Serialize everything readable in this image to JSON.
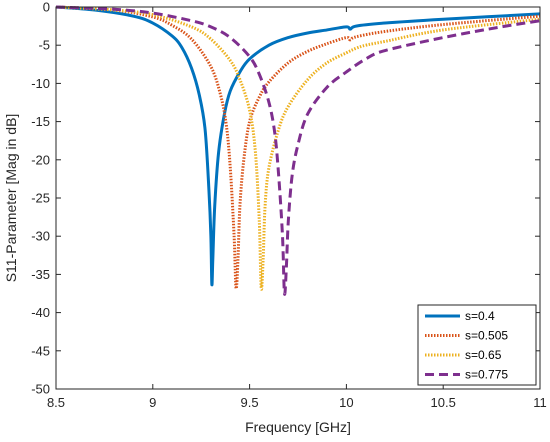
{
  "chart_data": {
    "type": "line",
    "title": "",
    "xlabel": "Frequency [GHz]",
    "ylabel": "S11-Parameter [Mag in dB]",
    "xlim": [
      8.5,
      11
    ],
    "ylim": [
      -50,
      0
    ],
    "xticks": [
      8.5,
      9,
      9.5,
      10,
      10.5,
      11
    ],
    "yticks": [
      0,
      -5,
      -10,
      -15,
      -20,
      -25,
      -30,
      -35,
      -40,
      -45,
      -50
    ],
    "x_tick_labels": [
      "8.5",
      "9",
      "9.5",
      "10",
      "10.5",
      "11"
    ],
    "y_tick_labels": [
      "0",
      "-5",
      "-10",
      "-15",
      "-20",
      "-25",
      "-30",
      "-35",
      "-40",
      "-45",
      "-50"
    ],
    "grid": false,
    "legend_position": "bottom-right",
    "series": [
      {
        "name": "s=0.4",
        "color": "#0072BD",
        "style": "solid",
        "points": [
          [
            8.5,
            0
          ],
          [
            8.7,
            -0.4
          ],
          [
            8.9,
            -1.2
          ],
          [
            9.0,
            -2.1
          ],
          [
            9.1,
            -3.8
          ],
          [
            9.15,
            -5.3
          ],
          [
            9.2,
            -8.0
          ],
          [
            9.24,
            -11.5
          ],
          [
            9.27,
            -16
          ],
          [
            9.29,
            -24
          ],
          [
            9.3,
            -30
          ],
          [
            9.305,
            -36.3
          ],
          [
            9.31,
            -33
          ],
          [
            9.32,
            -26
          ],
          [
            9.34,
            -19
          ],
          [
            9.37,
            -14
          ],
          [
            9.4,
            -11
          ],
          [
            9.45,
            -8.5
          ],
          [
            9.5,
            -6.8
          ],
          [
            9.6,
            -5.0
          ],
          [
            9.7,
            -4.0
          ],
          [
            9.8,
            -3.4
          ],
          [
            9.9,
            -3.0
          ],
          [
            10.0,
            -2.6
          ],
          [
            10.02,
            -2.9
          ],
          [
            10.05,
            -2.5
          ],
          [
            10.2,
            -2.1
          ],
          [
            10.5,
            -1.6
          ],
          [
            11.0,
            -0.9
          ]
        ]
      },
      {
        "name": "s=0.505",
        "color": "#D95319",
        "style": "dotted",
        "points": [
          [
            8.5,
            0
          ],
          [
            8.8,
            -0.4
          ],
          [
            9.0,
            -1.3
          ],
          [
            9.1,
            -2.4
          ],
          [
            9.2,
            -4.2
          ],
          [
            9.3,
            -7.8
          ],
          [
            9.35,
            -11.5
          ],
          [
            9.38,
            -15.5
          ],
          [
            9.4,
            -21
          ],
          [
            9.42,
            -30
          ],
          [
            9.43,
            -36.8
          ],
          [
            9.44,
            -33
          ],
          [
            9.45,
            -26
          ],
          [
            9.47,
            -20
          ],
          [
            9.5,
            -15
          ],
          [
            9.55,
            -11.8
          ],
          [
            9.6,
            -9.8
          ],
          [
            9.7,
            -7.3
          ],
          [
            9.8,
            -5.8
          ],
          [
            9.9,
            -4.8
          ],
          [
            10.0,
            -4.0
          ],
          [
            10.02,
            -4.3
          ],
          [
            10.05,
            -3.9
          ],
          [
            10.2,
            -3.2
          ],
          [
            10.5,
            -2.3
          ],
          [
            11.0,
            -1.2
          ]
        ]
      },
      {
        "name": "s=0.65",
        "color": "#EDB120",
        "style": "dotted",
        "points": [
          [
            8.5,
            0
          ],
          [
            8.8,
            -0.4
          ],
          [
            9.0,
            -1.0
          ],
          [
            9.2,
            -2.6
          ],
          [
            9.3,
            -4.2
          ],
          [
            9.4,
            -7.0
          ],
          [
            9.45,
            -9.5
          ],
          [
            9.5,
            -13.5
          ],
          [
            9.53,
            -19
          ],
          [
            9.55,
            -28
          ],
          [
            9.56,
            -36.8
          ],
          [
            9.57,
            -33
          ],
          [
            9.58,
            -26
          ],
          [
            9.6,
            -21
          ],
          [
            9.65,
            -16
          ],
          [
            9.7,
            -13
          ],
          [
            9.8,
            -9.5
          ],
          [
            9.9,
            -7.3
          ],
          [
            10.0,
            -6.0
          ],
          [
            10.05,
            -5.4
          ],
          [
            10.1,
            -5.0
          ],
          [
            10.2,
            -4.5
          ],
          [
            10.5,
            -3.0
          ],
          [
            11.0,
            -1.6
          ]
        ]
      },
      {
        "name": "s=0.775",
        "color": "#7E2F8E",
        "style": "dashed",
        "points": [
          [
            8.5,
            0
          ],
          [
            8.8,
            -0.3
          ],
          [
            9.0,
            -0.8
          ],
          [
            9.2,
            -1.8
          ],
          [
            9.3,
            -2.6
          ],
          [
            9.4,
            -4.0
          ],
          [
            9.5,
            -6.5
          ],
          [
            9.55,
            -8.8
          ],
          [
            9.6,
            -12.5
          ],
          [
            9.63,
            -16.5
          ],
          [
            9.65,
            -22
          ],
          [
            9.67,
            -30
          ],
          [
            9.68,
            -37.5
          ],
          [
            9.69,
            -34
          ],
          [
            9.7,
            -28
          ],
          [
            9.72,
            -22
          ],
          [
            9.75,
            -18
          ],
          [
            9.8,
            -14
          ],
          [
            9.9,
            -10.5
          ],
          [
            10.0,
            -8.5
          ],
          [
            10.1,
            -6.8
          ],
          [
            10.2,
            -5.7
          ],
          [
            10.5,
            -4.0
          ],
          [
            10.8,
            -2.6
          ],
          [
            11.0,
            -1.8
          ]
        ]
      }
    ]
  }
}
